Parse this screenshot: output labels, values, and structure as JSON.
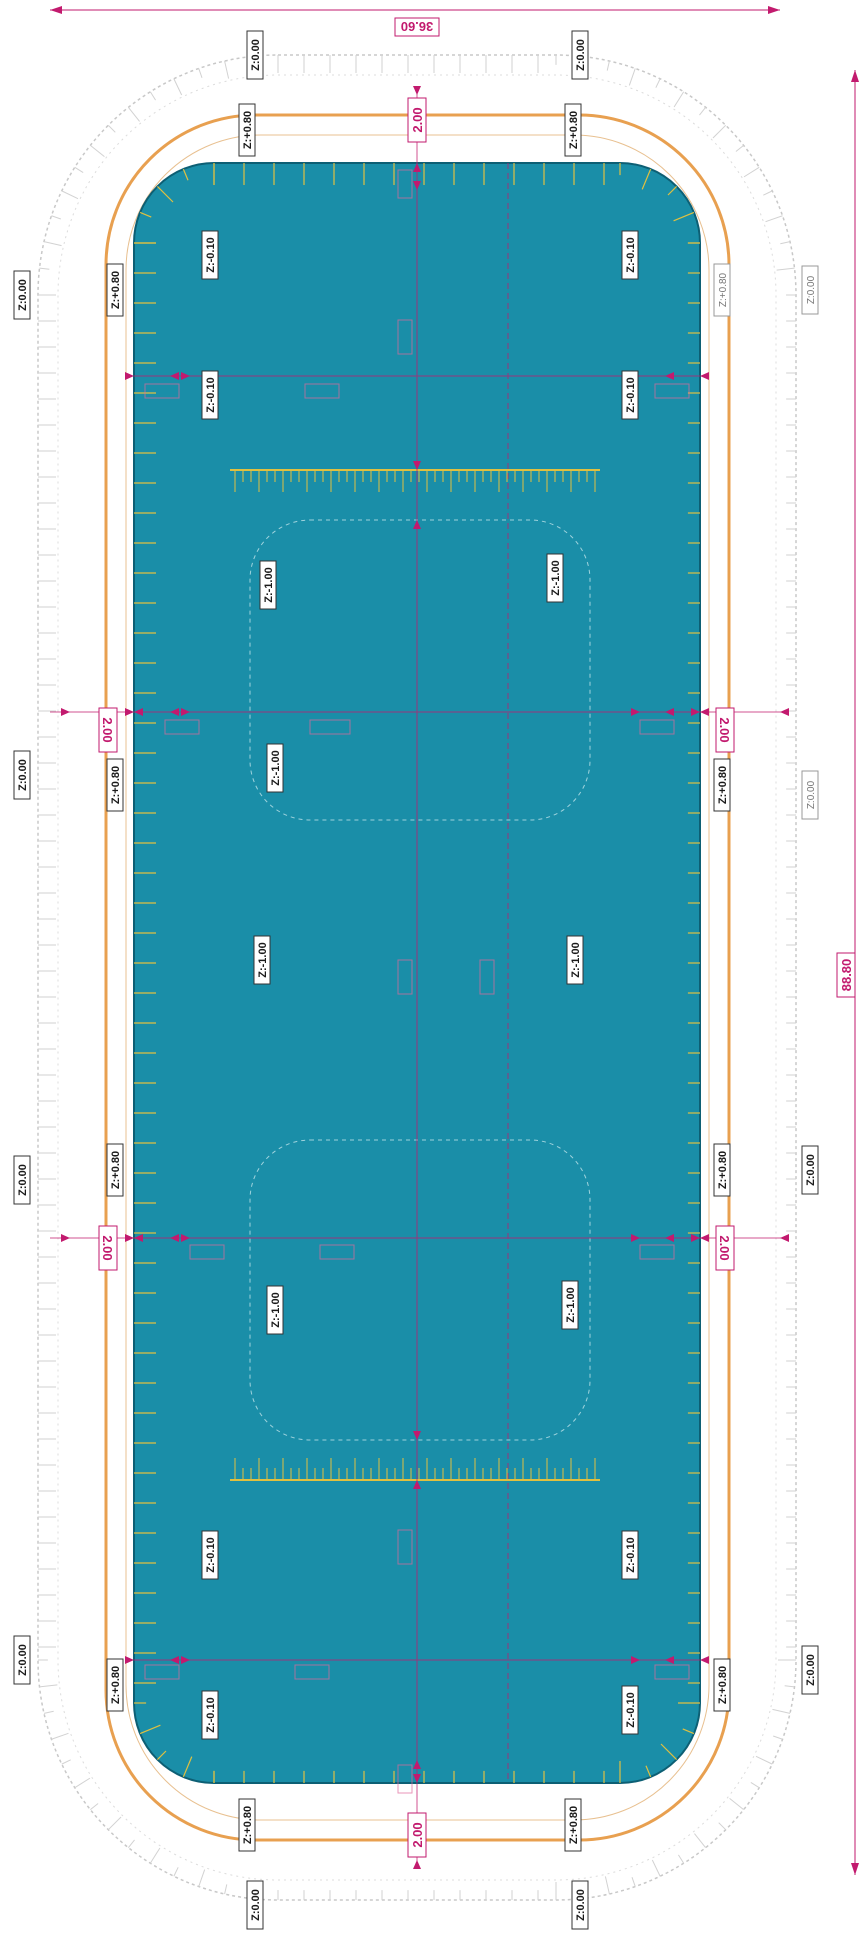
{
  "dimensions": {
    "width_total": "36.60",
    "length_total": "88.80",
    "top_center": "2.00",
    "bottom_center": "2.00",
    "left_upper": "2.00",
    "right_upper": "2.00",
    "left_lower": "2.00",
    "right_lower": "2.00"
  },
  "labels": {
    "outer_top_left": "Z:0.00",
    "outer_top_right": "Z:0.00",
    "outer_left_1": "Z:0.00",
    "outer_left_2": "Z:0.00",
    "outer_left_3": "Z:0.00",
    "outer_left_4": "Z:0.00",
    "outer_right_1": "Z:0.00",
    "outer_right_2": "Z:0.00",
    "outer_right_3": "Z:0.00",
    "outer_right_4": "Z:0.00",
    "outer_bottom_left": "Z:0.00",
    "outer_bottom_right": "Z:0.00",
    "deck_top_left": "Z:+0.80",
    "deck_top_right": "Z:+0.80",
    "deck_left_1": "Z:+0.80",
    "deck_left_2": "Z:+0.80",
    "deck_left_3": "Z:+0.80",
    "deck_left_4": "Z:+0.80",
    "deck_right_1": "Z:+0.80",
    "deck_right_2": "Z:+0.80",
    "deck_right_3": "Z:+0.80",
    "deck_right_4": "Z:+0.80",
    "deck_bottom_left": "Z:+0.80",
    "deck_bottom_right": "Z:+0.80",
    "shallow_tl_1": "Z:-0.10",
    "shallow_tr_1": "Z:-0.10",
    "shallow_tl_2": "Z:-0.10",
    "shallow_tr_2": "Z:-0.10",
    "shallow_bl_1": "Z:-0.10",
    "shallow_br_1": "Z:-0.10",
    "shallow_bl_2": "Z:-0.10",
    "shallow_br_2": "Z:-0.10",
    "deep_upper_l": "Z:-1.00",
    "deep_upper_r": "Z:-1.00",
    "deep_mid_l1": "Z:-1.00",
    "deep_mid_l2": "Z:-1.00",
    "deep_mid_r": "Z:-1.00",
    "deep_lower_l": "Z:-1.00",
    "deep_lower_r": "Z:-1.00"
  },
  "colors": {
    "water": "#1a8ea8",
    "dim": "#c21a6e",
    "deck_edge": "#e8a050",
    "slope": "#e0c040"
  }
}
